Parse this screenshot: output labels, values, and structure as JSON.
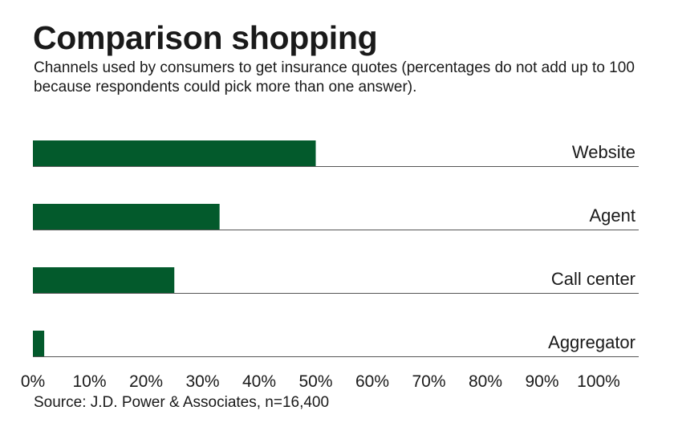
{
  "title": "Comparison shopping",
  "subtitle": "Channels used by consumers to get insurance quotes (percentages do not add up to 100 because respondents could pick more than one answer).",
  "source": "Source: J.D. Power & Associates, n=16,400",
  "colors": {
    "bar": "#035a2c",
    "baseline": "#555555"
  },
  "chart_data": {
    "type": "bar",
    "orientation": "horizontal",
    "categories": [
      "Website",
      "Agent",
      "Call center",
      "Aggregator"
    ],
    "values": [
      50,
      33,
      25,
      2
    ],
    "xlim": [
      0,
      100
    ],
    "xticks": [
      "0%",
      "10%",
      "20%",
      "30%",
      "40%",
      "50%",
      "60%",
      "70%",
      "80%",
      "90%",
      "100%"
    ],
    "grid": false,
    "legend": "none"
  }
}
